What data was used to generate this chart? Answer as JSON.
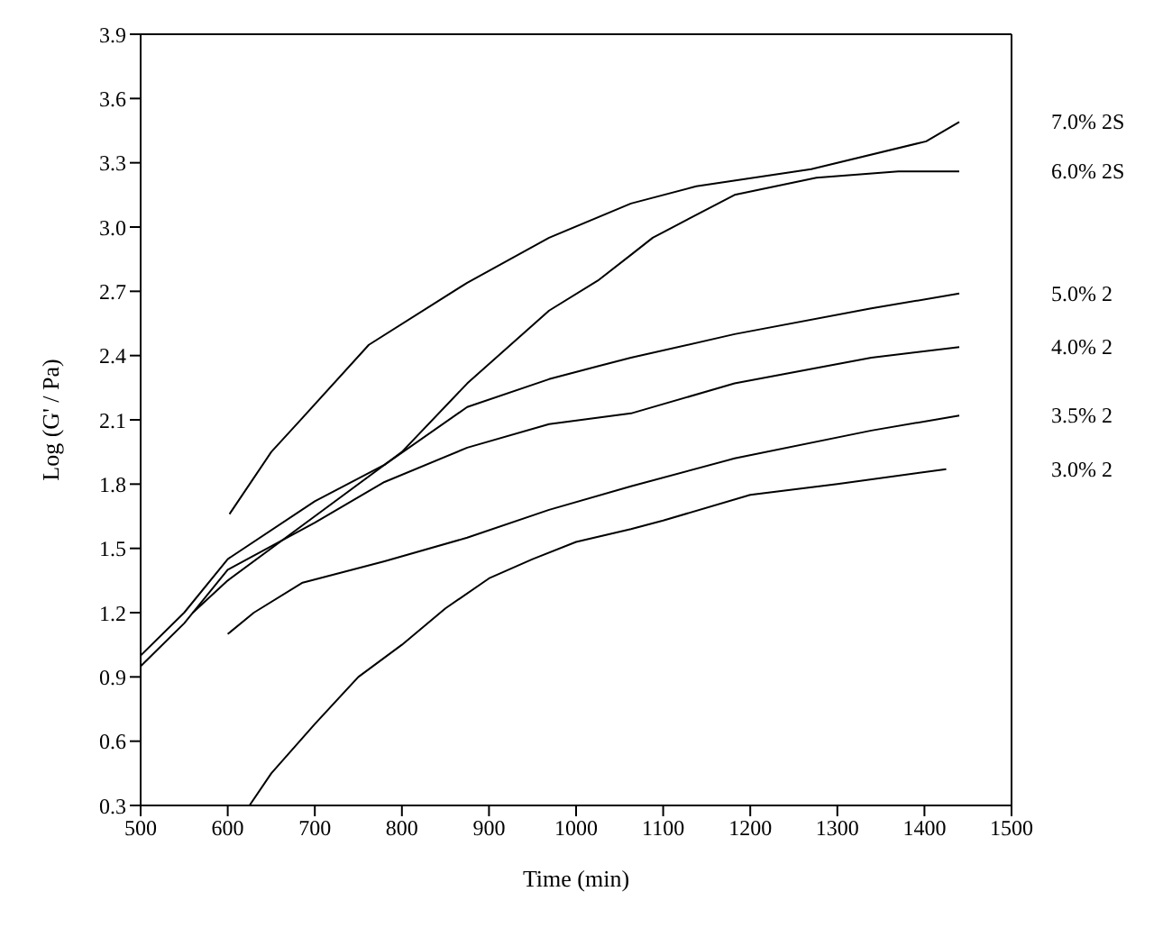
{
  "chart_data": {
    "type": "line",
    "xlabel": "Time (min)",
    "ylabel": "Log (G' / Pa)",
    "xlim": [
      500,
      1500
    ],
    "xticks": [
      500,
      600,
      700,
      800,
      900,
      1000,
      1100,
      1200,
      1300,
      1400,
      1500
    ],
    "ylim": [
      0.3,
      3.9
    ],
    "yticks": [
      0.3,
      0.6,
      0.9,
      1.2,
      1.5,
      1.8,
      2.1,
      2.4,
      2.7,
      {
        "value": 3,
        "label": "3.0"
      },
      3.3,
      3.6,
      3.9
    ],
    "grid": false,
    "legend": false,
    "marker": "none",
    "line_style": "solid",
    "series": [
      {
        "name": "7.0% 2S",
        "color": "#000000",
        "x": [
          602,
          650,
          686,
          762,
          875,
          969,
          1063,
          1138,
          1270,
          1402,
          1440
        ],
        "values": [
          1.66,
          1.95,
          2.11,
          2.45,
          2.74,
          2.95,
          3.11,
          3.19,
          3.27,
          3.4,
          3.49
        ]
      },
      {
        "name": "6.0% 2S",
        "color": "#000000",
        "x": [
          560,
          600,
          700,
          800,
          875,
          969,
          1025,
          1063,
          1088,
          1182,
          1276,
          1370,
          1440
        ],
        "values": [
          1.2,
          1.35,
          1.65,
          1.95,
          2.27,
          2.61,
          2.75,
          2.87,
          2.95,
          3.15,
          3.23,
          3.26,
          3.26
        ]
      },
      {
        "name": "5.0% 2",
        "color": "#000000",
        "x": [
          500,
          550,
          600,
          700,
          780,
          875,
          969,
          1025,
          1063,
          1182,
          1339,
          1440
        ],
        "values": [
          1.0,
          1.2,
          1.45,
          1.72,
          1.89,
          2.16,
          2.29,
          2.35,
          2.39,
          2.5,
          2.62,
          2.69
        ]
      },
      {
        "name": "4.0% 2",
        "color": "#000000",
        "x": [
          500,
          550,
          600,
          700,
          780,
          875,
          969,
          1063,
          1182,
          1339,
          1440
        ],
        "values": [
          0.95,
          1.15,
          1.4,
          1.62,
          1.81,
          1.97,
          2.08,
          2.13,
          2.27,
          2.39,
          2.44
        ]
      },
      {
        "name": "3.5% 2",
        "color": "#000000",
        "x": [
          600,
          630,
          686,
          780,
          875,
          969,
          1063,
          1182,
          1339,
          1440
        ],
        "values": [
          1.1,
          1.2,
          1.34,
          1.44,
          1.55,
          1.68,
          1.79,
          1.92,
          2.05,
          2.12
        ]
      },
      {
        "name": "3.0% 2",
        "color": "#000000",
        "x": [
          625,
          650,
          700,
          750,
          800,
          850,
          900,
          950,
          1000,
          1063,
          1100,
          1200,
          1300,
          1425
        ],
        "values": [
          0.3,
          0.45,
          0.68,
          0.9,
          1.05,
          1.22,
          1.36,
          1.45,
          1.53,
          1.59,
          1.63,
          1.75,
          1.8,
          1.87
        ]
      }
    ]
  }
}
